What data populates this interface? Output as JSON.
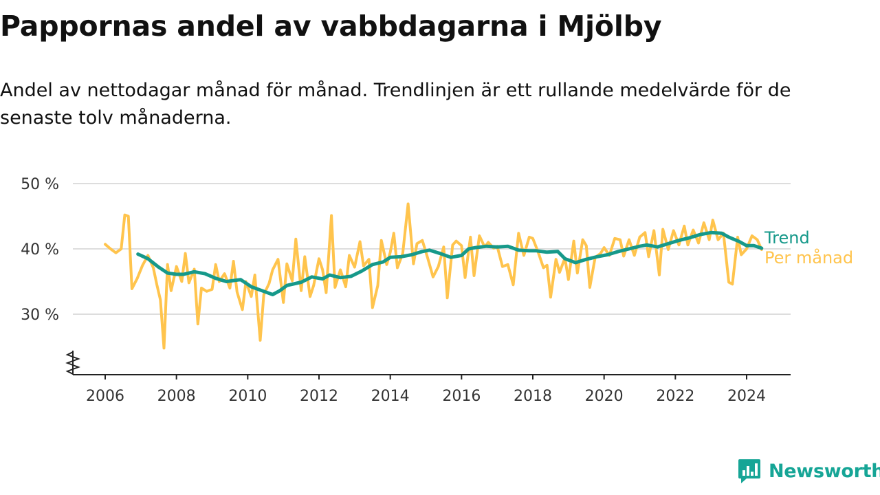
{
  "title": "Pappornas andel av vabbdagarna i Mjölby",
  "subtitle": "Andel av nettodagar månad för månad. Trendlinjen är ett rullande medelvärde för de senaste tolv månaderna.",
  "brand": {
    "name": "Newsworthy"
  },
  "colors": {
    "trend": "#16998a",
    "monthly": "#ffc44d",
    "grid": "#dddddd",
    "axis": "#222222"
  },
  "chart_data": {
    "type": "line",
    "title": "Pappornas andel av vabbdagarna i Mjölby",
    "ylim": [
      21,
      50
    ],
    "y_ticks": [
      30,
      40,
      50
    ],
    "y_tick_labels": [
      "30 %",
      "40 %",
      "50 %"
    ],
    "x_ticks": [
      2006,
      2008,
      2010,
      2012,
      2014,
      2016,
      2018,
      2020,
      2022,
      2024
    ],
    "x_tick_labels": [
      "2006",
      "2008",
      "2010",
      "2012",
      "2014",
      "2016",
      "2018",
      "2020",
      "2022",
      "2024"
    ],
    "xlim": [
      2005.1,
      2025.2
    ],
    "y_axis_break": true,
    "grid": true,
    "legend": "inline labels at right end of lines",
    "series": [
      {
        "name": "Trend",
        "color": "#16998a",
        "points": [
          [
            2006.92,
            39.2
          ],
          [
            2007.2,
            38.5
          ],
          [
            2007.5,
            37.2
          ],
          [
            2007.75,
            36.3
          ],
          [
            2008.0,
            36.1
          ],
          [
            2008.2,
            36.1
          ],
          [
            2008.5,
            36.5
          ],
          [
            2008.8,
            36.2
          ],
          [
            2009.1,
            35.5
          ],
          [
            2009.4,
            35.0
          ],
          [
            2009.8,
            35.3
          ],
          [
            2010.1,
            34.2
          ],
          [
            2010.4,
            33.6
          ],
          [
            2010.7,
            33.0
          ],
          [
            2010.9,
            33.6
          ],
          [
            2011.1,
            34.4
          ],
          [
            2011.5,
            34.9
          ],
          [
            2011.8,
            35.7
          ],
          [
            2012.1,
            35.4
          ],
          [
            2012.3,
            36.0
          ],
          [
            2012.6,
            35.6
          ],
          [
            2012.9,
            35.8
          ],
          [
            2013.2,
            36.6
          ],
          [
            2013.5,
            37.6
          ],
          [
            2013.8,
            38.0
          ],
          [
            2014.0,
            38.7
          ],
          [
            2014.3,
            38.8
          ],
          [
            2014.6,
            39.1
          ],
          [
            2014.9,
            39.6
          ],
          [
            2015.1,
            39.8
          ],
          [
            2015.4,
            39.3
          ],
          [
            2015.7,
            38.7
          ],
          [
            2016.0,
            39.0
          ],
          [
            2016.2,
            40.0
          ],
          [
            2016.4,
            40.2
          ],
          [
            2016.7,
            40.4
          ],
          [
            2017.0,
            40.3
          ],
          [
            2017.3,
            40.4
          ],
          [
            2017.6,
            39.8
          ],
          [
            2017.9,
            39.7
          ],
          [
            2018.1,
            39.7
          ],
          [
            2018.4,
            39.5
          ],
          [
            2018.7,
            39.6
          ],
          [
            2018.9,
            38.5
          ],
          [
            2019.2,
            37.9
          ],
          [
            2019.5,
            38.4
          ],
          [
            2019.8,
            38.8
          ],
          [
            2020.1,
            39.1
          ],
          [
            2020.4,
            39.6
          ],
          [
            2020.7,
            40.0
          ],
          [
            2021.0,
            40.4
          ],
          [
            2021.2,
            40.6
          ],
          [
            2021.5,
            40.3
          ],
          [
            2021.8,
            40.8
          ],
          [
            2022.1,
            41.3
          ],
          [
            2022.4,
            41.7
          ],
          [
            2022.7,
            42.2
          ],
          [
            2023.0,
            42.5
          ],
          [
            2023.3,
            42.4
          ],
          [
            2023.5,
            41.8
          ],
          [
            2023.8,
            41.1
          ],
          [
            2024.0,
            40.5
          ],
          [
            2024.2,
            40.5
          ],
          [
            2024.42,
            40.1
          ]
        ]
      },
      {
        "name": "Per månad",
        "color": "#ffc44d",
        "points": [
          [
            2006.0,
            40.7
          ],
          [
            2006.15,
            40.0
          ],
          [
            2006.3,
            39.4
          ],
          [
            2006.45,
            40.0
          ],
          [
            2006.55,
            45.2
          ],
          [
            2006.65,
            45.0
          ],
          [
            2006.75,
            33.9
          ],
          [
            2006.9,
            35.5
          ],
          [
            2007.05,
            37.5
          ],
          [
            2007.2,
            39.0
          ],
          [
            2007.35,
            37.1
          ],
          [
            2007.45,
            34.5
          ],
          [
            2007.55,
            32.2
          ],
          [
            2007.65,
            24.8
          ],
          [
            2007.75,
            37.6
          ],
          [
            2007.85,
            33.6
          ],
          [
            2008.0,
            37.3
          ],
          [
            2008.15,
            35.0
          ],
          [
            2008.25,
            39.3
          ],
          [
            2008.35,
            34.8
          ],
          [
            2008.5,
            36.9
          ],
          [
            2008.6,
            28.5
          ],
          [
            2008.7,
            34.0
          ],
          [
            2008.85,
            33.5
          ],
          [
            2009.0,
            33.8
          ],
          [
            2009.1,
            37.6
          ],
          [
            2009.2,
            35.0
          ],
          [
            2009.35,
            36.2
          ],
          [
            2009.5,
            34.0
          ],
          [
            2009.6,
            38.1
          ],
          [
            2009.7,
            33.4
          ],
          [
            2009.85,
            30.7
          ],
          [
            2009.95,
            35.0
          ],
          [
            2010.1,
            32.7
          ],
          [
            2010.2,
            36.0
          ],
          [
            2010.35,
            26.0
          ],
          [
            2010.45,
            33.0
          ],
          [
            2010.6,
            34.7
          ],
          [
            2010.7,
            36.8
          ],
          [
            2010.85,
            38.4
          ],
          [
            2011.0,
            31.8
          ],
          [
            2011.1,
            37.7
          ],
          [
            2011.25,
            35.1
          ],
          [
            2011.35,
            41.5
          ],
          [
            2011.5,
            33.6
          ],
          [
            2011.6,
            38.8
          ],
          [
            2011.75,
            32.7
          ],
          [
            2011.85,
            34.4
          ],
          [
            2012.0,
            38.5
          ],
          [
            2012.1,
            36.8
          ],
          [
            2012.2,
            33.3
          ],
          [
            2012.35,
            45.1
          ],
          [
            2012.45,
            34.1
          ],
          [
            2012.6,
            36.8
          ],
          [
            2012.75,
            34.2
          ],
          [
            2012.85,
            39.0
          ],
          [
            2013.0,
            37.2
          ],
          [
            2013.15,
            41.1
          ],
          [
            2013.25,
            37.4
          ],
          [
            2013.4,
            38.4
          ],
          [
            2013.5,
            31.0
          ],
          [
            2013.65,
            34.4
          ],
          [
            2013.75,
            41.3
          ],
          [
            2013.9,
            37.6
          ],
          [
            2014.0,
            39.5
          ],
          [
            2014.1,
            42.4
          ],
          [
            2014.2,
            37.1
          ],
          [
            2014.35,
            39.3
          ],
          [
            2014.5,
            46.9
          ],
          [
            2014.65,
            37.7
          ],
          [
            2014.75,
            40.8
          ],
          [
            2014.9,
            41.3
          ],
          [
            2015.05,
            38.6
          ],
          [
            2015.2,
            35.7
          ],
          [
            2015.35,
            37.3
          ],
          [
            2015.5,
            40.3
          ],
          [
            2015.6,
            32.5
          ],
          [
            2015.75,
            40.6
          ],
          [
            2015.85,
            41.2
          ],
          [
            2016.0,
            40.5
          ],
          [
            2016.1,
            35.6
          ],
          [
            2016.25,
            41.8
          ],
          [
            2016.35,
            35.9
          ],
          [
            2016.5,
            42.0
          ],
          [
            2016.65,
            40.3
          ],
          [
            2016.75,
            41.0
          ],
          [
            2016.9,
            40.1
          ],
          [
            2017.0,
            40.4
          ],
          [
            2017.15,
            37.3
          ],
          [
            2017.3,
            37.6
          ],
          [
            2017.45,
            34.5
          ],
          [
            2017.6,
            42.4
          ],
          [
            2017.75,
            39.0
          ],
          [
            2017.9,
            41.8
          ],
          [
            2018.0,
            41.6
          ],
          [
            2018.15,
            39.5
          ],
          [
            2018.3,
            37.1
          ],
          [
            2018.4,
            37.5
          ],
          [
            2018.5,
            32.6
          ],
          [
            2018.65,
            38.4
          ],
          [
            2018.75,
            36.4
          ],
          [
            2018.9,
            38.6
          ],
          [
            2019.0,
            35.3
          ],
          [
            2019.15,
            41.2
          ],
          [
            2019.25,
            36.3
          ],
          [
            2019.4,
            41.4
          ],
          [
            2019.5,
            40.5
          ],
          [
            2019.6,
            34.1
          ],
          [
            2019.75,
            38.7
          ],
          [
            2019.9,
            39.3
          ],
          [
            2020.0,
            40.2
          ],
          [
            2020.15,
            39.0
          ],
          [
            2020.3,
            41.6
          ],
          [
            2020.45,
            41.4
          ],
          [
            2020.55,
            38.9
          ],
          [
            2020.7,
            41.4
          ],
          [
            2020.85,
            39.0
          ],
          [
            2021.0,
            41.8
          ],
          [
            2021.15,
            42.5
          ],
          [
            2021.25,
            38.8
          ],
          [
            2021.4,
            42.8
          ],
          [
            2021.55,
            36.0
          ],
          [
            2021.65,
            43.0
          ],
          [
            2021.8,
            39.9
          ],
          [
            2021.95,
            42.8
          ],
          [
            2022.1,
            40.6
          ],
          [
            2022.25,
            43.5
          ],
          [
            2022.35,
            40.6
          ],
          [
            2022.5,
            42.9
          ],
          [
            2022.65,
            40.9
          ],
          [
            2022.8,
            44.0
          ],
          [
            2022.95,
            41.4
          ],
          [
            2023.05,
            44.4
          ],
          [
            2023.2,
            41.4
          ],
          [
            2023.35,
            42.4
          ],
          [
            2023.5,
            34.9
          ],
          [
            2023.6,
            34.6
          ],
          [
            2023.75,
            41.8
          ],
          [
            2023.85,
            39.1
          ],
          [
            2024.0,
            40.0
          ],
          [
            2024.15,
            42.0
          ],
          [
            2024.3,
            41.4
          ],
          [
            2024.42,
            39.9
          ]
        ]
      }
    ]
  }
}
